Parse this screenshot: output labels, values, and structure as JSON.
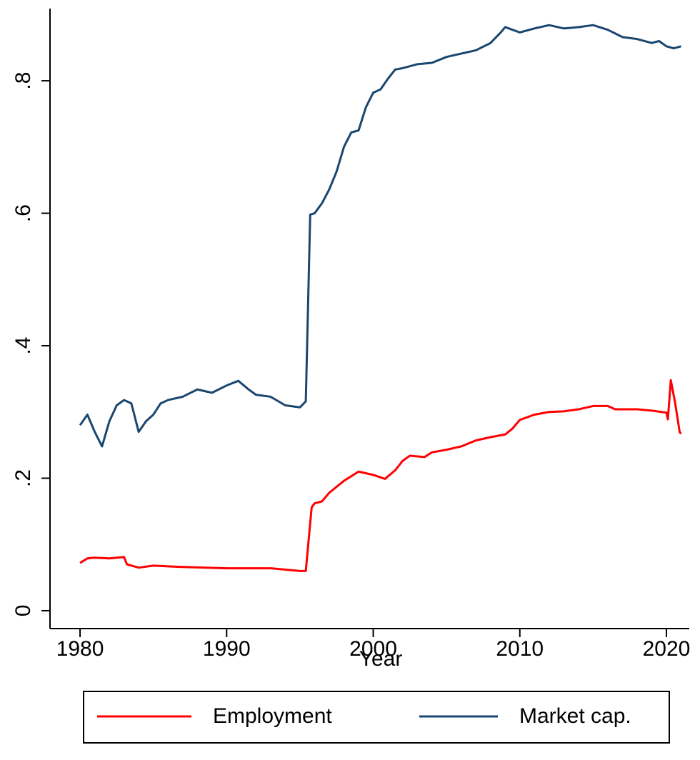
{
  "chart_data": {
    "type": "line",
    "x_label": "Year",
    "xlim": [
      1977.95,
      2021.56
    ],
    "xticks": [
      1980,
      1990,
      2000,
      2010,
      2020
    ],
    "ylim": [
      -0.027,
      0.909
    ],
    "yticks": [
      0,
      {
        "value": 0.2,
        "label": ".2"
      },
      {
        "value": 0.4,
        "label": ".4"
      },
      {
        "value": 0.6,
        "label": ".6"
      },
      {
        "value": 0.8,
        "label": ".8"
      }
    ],
    "grid": false,
    "legend": "bottom",
    "series": [
      {
        "name": "Employment",
        "color": "#ff0000",
        "x": [
          1980,
          1980.5,
          1981,
          1982,
          1983,
          1983.2,
          1984,
          1985,
          1986,
          1987,
          1990,
          1993,
          1995,
          1995.4,
          1995.8,
          1996,
          1996.5,
          1997,
          1998,
          1999,
          2000,
          2000.8,
          2001.5,
          2002,
          2002.5,
          2003.5,
          2004,
          2005,
          2006,
          2007,
          2008,
          2009,
          2009.5,
          2010,
          2011,
          2012,
          2013,
          2014,
          2015,
          2016,
          2016.5,
          2018,
          2019,
          2020,
          2020.1,
          2020.3,
          2020.6,
          2020.9,
          2021
        ],
        "values": [
          0.072,
          0.079,
          0.08,
          0.079,
          0.081,
          0.07,
          0.065,
          0.068,
          0.067,
          0.066,
          0.064,
          0.064,
          0.06,
          0.06,
          0.156,
          0.162,
          0.165,
          0.178,
          0.196,
          0.21,
          0.205,
          0.199,
          0.212,
          0.226,
          0.234,
          0.232,
          0.239,
          0.243,
          0.248,
          0.257,
          0.262,
          0.266,
          0.275,
          0.288,
          0.296,
          0.3,
          0.301,
          0.304,
          0.309,
          0.309,
          0.304,
          0.304,
          0.302,
          0.299,
          0.289,
          0.348,
          0.313,
          0.27,
          0.267
        ]
      },
      {
        "name": "Market cap.",
        "color": "#1a476f",
        "x": [
          1980,
          1980.5,
          1981,
          1981.5,
          1982,
          1982.5,
          1983,
          1983.5,
          1984,
          1984.5,
          1985,
          1985.5,
          1986,
          1987,
          1988,
          1989,
          1990,
          1990.8,
          1991.5,
          1992,
          1993,
          1994,
          1995,
          1995.4,
          1995.7,
          1996,
          1996.5,
          1997,
          1997.5,
          1998,
          1998.5,
          1999,
          1999.5,
          2000,
          2000.5,
          2001,
          2001.5,
          2002,
          2003,
          2004,
          2005,
          2006,
          2007,
          2008,
          2008.7,
          2009,
          2009.5,
          2010,
          2011,
          2012,
          2013,
          2014,
          2015,
          2016,
          2017,
          2018,
          2019,
          2019.5,
          2020,
          2020.5,
          2021
        ],
        "values": [
          0.28,
          0.296,
          0.27,
          0.248,
          0.286,
          0.31,
          0.318,
          0.313,
          0.27,
          0.286,
          0.296,
          0.313,
          0.318,
          0.323,
          0.334,
          0.329,
          0.34,
          0.347,
          0.334,
          0.326,
          0.323,
          0.31,
          0.307,
          0.316,
          0.598,
          0.6,
          0.615,
          0.636,
          0.663,
          0.7,
          0.722,
          0.725,
          0.76,
          0.782,
          0.787,
          0.803,
          0.817,
          0.819,
          0.825,
          0.827,
          0.836,
          0.841,
          0.846,
          0.857,
          0.873,
          0.881,
          0.877,
          0.873,
          0.879,
          0.884,
          0.879,
          0.881,
          0.884,
          0.877,
          0.866,
          0.863,
          0.857,
          0.86,
          0.852,
          0.849,
          0.852
        ]
      }
    ]
  }
}
